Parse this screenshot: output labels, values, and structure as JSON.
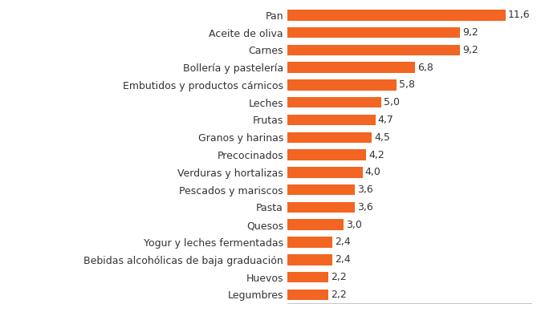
{
  "chart_data": {
    "type": "bar",
    "orientation": "horizontal",
    "categories": [
      "Pan",
      "Aceite de oliva",
      "Carnes",
      "Bollería y pastelería",
      "Embutidos y productos cárnicos",
      "Leches",
      "Frutas",
      "Granos y harinas",
      "Precocinados",
      "Verduras y hortalizas",
      "Pescados y mariscos",
      "Pasta",
      "Quesos",
      "Yogur y leches fermentadas",
      "Bebidas alcohólicas de baja graduación",
      "Huevos",
      "Legumbres"
    ],
    "values": [
      11.6,
      9.2,
      9.2,
      6.8,
      5.8,
      5.0,
      4.7,
      4.5,
      4.2,
      4.0,
      3.6,
      3.6,
      3.0,
      2.4,
      2.4,
      2.2,
      2.2
    ],
    "value_labels": [
      "11,6",
      "9,2",
      "9,2",
      "6,8",
      "5,8",
      "5,0",
      "4,7",
      "4,5",
      "4,2",
      "4,0",
      "3,6",
      "3,6",
      "3,0",
      "2,4",
      "2,4",
      "2,2",
      "2,2"
    ],
    "color": "#f26522",
    "xlim": [
      0,
      13
    ],
    "xticks": [],
    "data_labels": true,
    "tick_labels": "y",
    "grid": false
  }
}
